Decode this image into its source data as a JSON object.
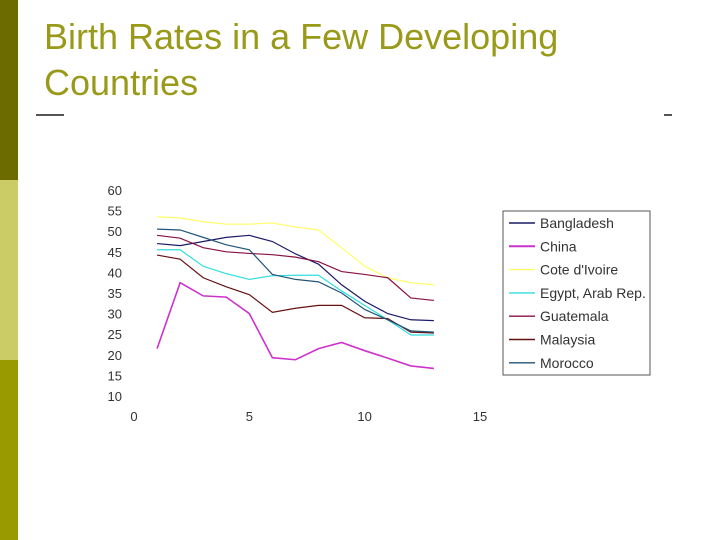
{
  "slide": {
    "title": "Birth Rates in a Few Developing Countries"
  },
  "colors": {
    "sidebar_dark": "#6b6b00",
    "sidebar_light": "#cccc66",
    "sidebar_mid": "#999900",
    "title": "#99991a"
  },
  "chart_data": {
    "type": "line",
    "title": "",
    "xlabel": "",
    "ylabel": "",
    "xlim": [
      0,
      15
    ],
    "ylim": [
      10,
      60
    ],
    "x_ticks": [
      "0",
      "5",
      "10",
      "15"
    ],
    "y_ticks": [
      "60",
      "55",
      "50",
      "45",
      "40",
      "35",
      "30",
      "25",
      "20",
      "15",
      "10"
    ],
    "x": [
      1,
      2,
      3,
      4,
      5,
      6,
      7,
      8,
      9,
      10,
      11,
      12,
      13
    ],
    "legend_position": "right",
    "series": [
      {
        "name": "Bangladesh",
        "color": "#1a1a66",
        "values": [
          47,
          46.5,
          47.5,
          48.5,
          49,
          47.5,
          44.5,
          42,
          37,
          33,
          30,
          28.5,
          28.3
        ]
      },
      {
        "name": "China",
        "color": "#cc33cc",
        "values": [
          21.5,
          37.5,
          34.3,
          34,
          30,
          19.3,
          18.8,
          21.5,
          23,
          21,
          19.2,
          17.3,
          16.7
        ]
      },
      {
        "name": "Cote d'Ivoire",
        "color": "#ffff66",
        "values": [
          53.5,
          53.2,
          52.3,
          51.7,
          51.7,
          52,
          51,
          50.3,
          46,
          41.5,
          38.7,
          37.5,
          37
        ]
      },
      {
        "name": "Egypt, Arab Rep.",
        "color": "#33dddd",
        "values": [
          45.5,
          45.5,
          41.5,
          39.7,
          38.3,
          39.2,
          39.3,
          39.3,
          35.5,
          32,
          28.5,
          24.8,
          24.8
        ]
      },
      {
        "name": "Guatemala",
        "color": "#881144",
        "values": [
          49,
          48.3,
          46,
          45,
          44.6,
          44.3,
          43.7,
          42.6,
          40.2,
          39.5,
          38.7,
          33.8,
          33.2
        ]
      },
      {
        "name": "Malaysia",
        "color": "#661111",
        "values": [
          44.2,
          43.2,
          38.7,
          36.5,
          34.6,
          30.3,
          31.3,
          32,
          32,
          29,
          28.8,
          25.5,
          25.3
        ]
      },
      {
        "name": "Morocco",
        "color": "#225577",
        "values": [
          50.5,
          50.3,
          48.5,
          46.7,
          45.5,
          39.5,
          38.3,
          37.7,
          35,
          31,
          28.5,
          25.8,
          25.5
        ]
      }
    ]
  }
}
